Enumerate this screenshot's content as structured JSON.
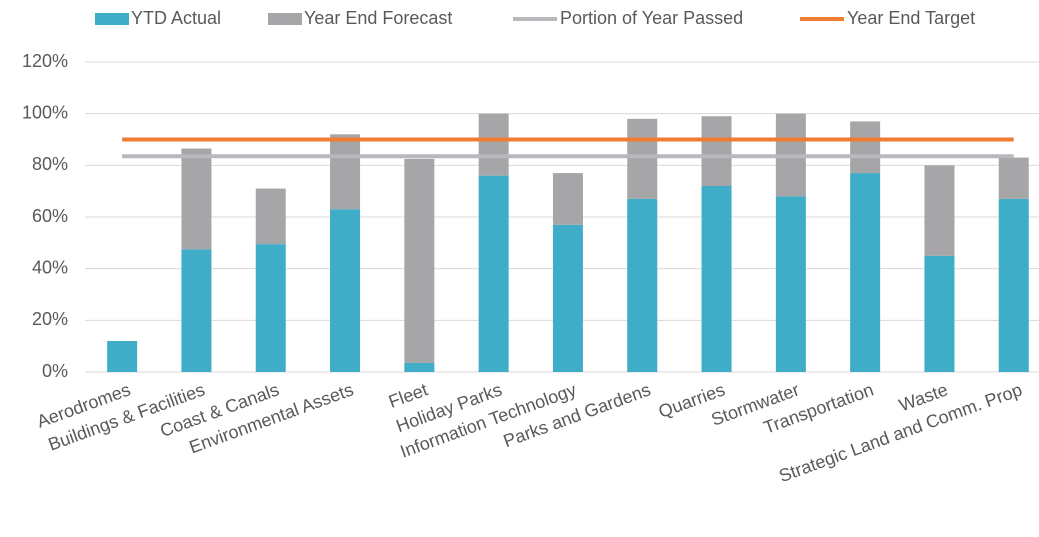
{
  "chart_data": {
    "type": "bar",
    "stacked": true,
    "categories": [
      "Aerodromes",
      "Buildings & Facilities",
      "Coast & Canals",
      "Environmental Assets",
      "Fleet",
      "Holiday Parks",
      "Information Technology",
      "Parks and Gardens",
      "Quarries",
      "Stormwater",
      "Transportation",
      "Waste",
      "Strategic Land and Comm. Prop"
    ],
    "series": [
      {
        "name": "YTD Actual",
        "type": "bar",
        "color": "#3fadc8",
        "values": [
          12,
          47.5,
          49.5,
          63,
          3.5,
          76,
          57,
          67,
          72,
          68,
          77,
          45,
          67
        ]
      },
      {
        "name": "Year End Forecast",
        "type": "bar",
        "color": "#a6a6a8",
        "values": [
          0,
          39,
          21.5,
          29,
          79,
          24,
          20,
          31,
          27,
          32,
          20,
          35,
          16
        ]
      },
      {
        "name": "Portion of Year Passed",
        "type": "line",
        "color": "#b8b8bd",
        "values": [
          83.5,
          83.5,
          83.5,
          83.5,
          83.5,
          83.5,
          83.5,
          83.5,
          83.5,
          83.5,
          83.5,
          83.5,
          83.5
        ]
      },
      {
        "name": "Year End Target",
        "type": "line",
        "color": "#ed7d31",
        "values": [
          90,
          90,
          90,
          90,
          90,
          90,
          90,
          90,
          90,
          90,
          90,
          90,
          90
        ]
      }
    ],
    "ylim": [
      0,
      120
    ],
    "yticks": [
      {
        "value": 0,
        "label": "0%"
      },
      {
        "value": 20,
        "label": "20%"
      },
      {
        "value": 40,
        "label": "40%"
      },
      {
        "value": 60,
        "label": "60%"
      },
      {
        "value": 80,
        "label": "80%"
      },
      {
        "value": 100,
        "label": "100%"
      },
      {
        "value": 120,
        "label": "120%"
      }
    ],
    "grid": true,
    "legend": "top"
  }
}
